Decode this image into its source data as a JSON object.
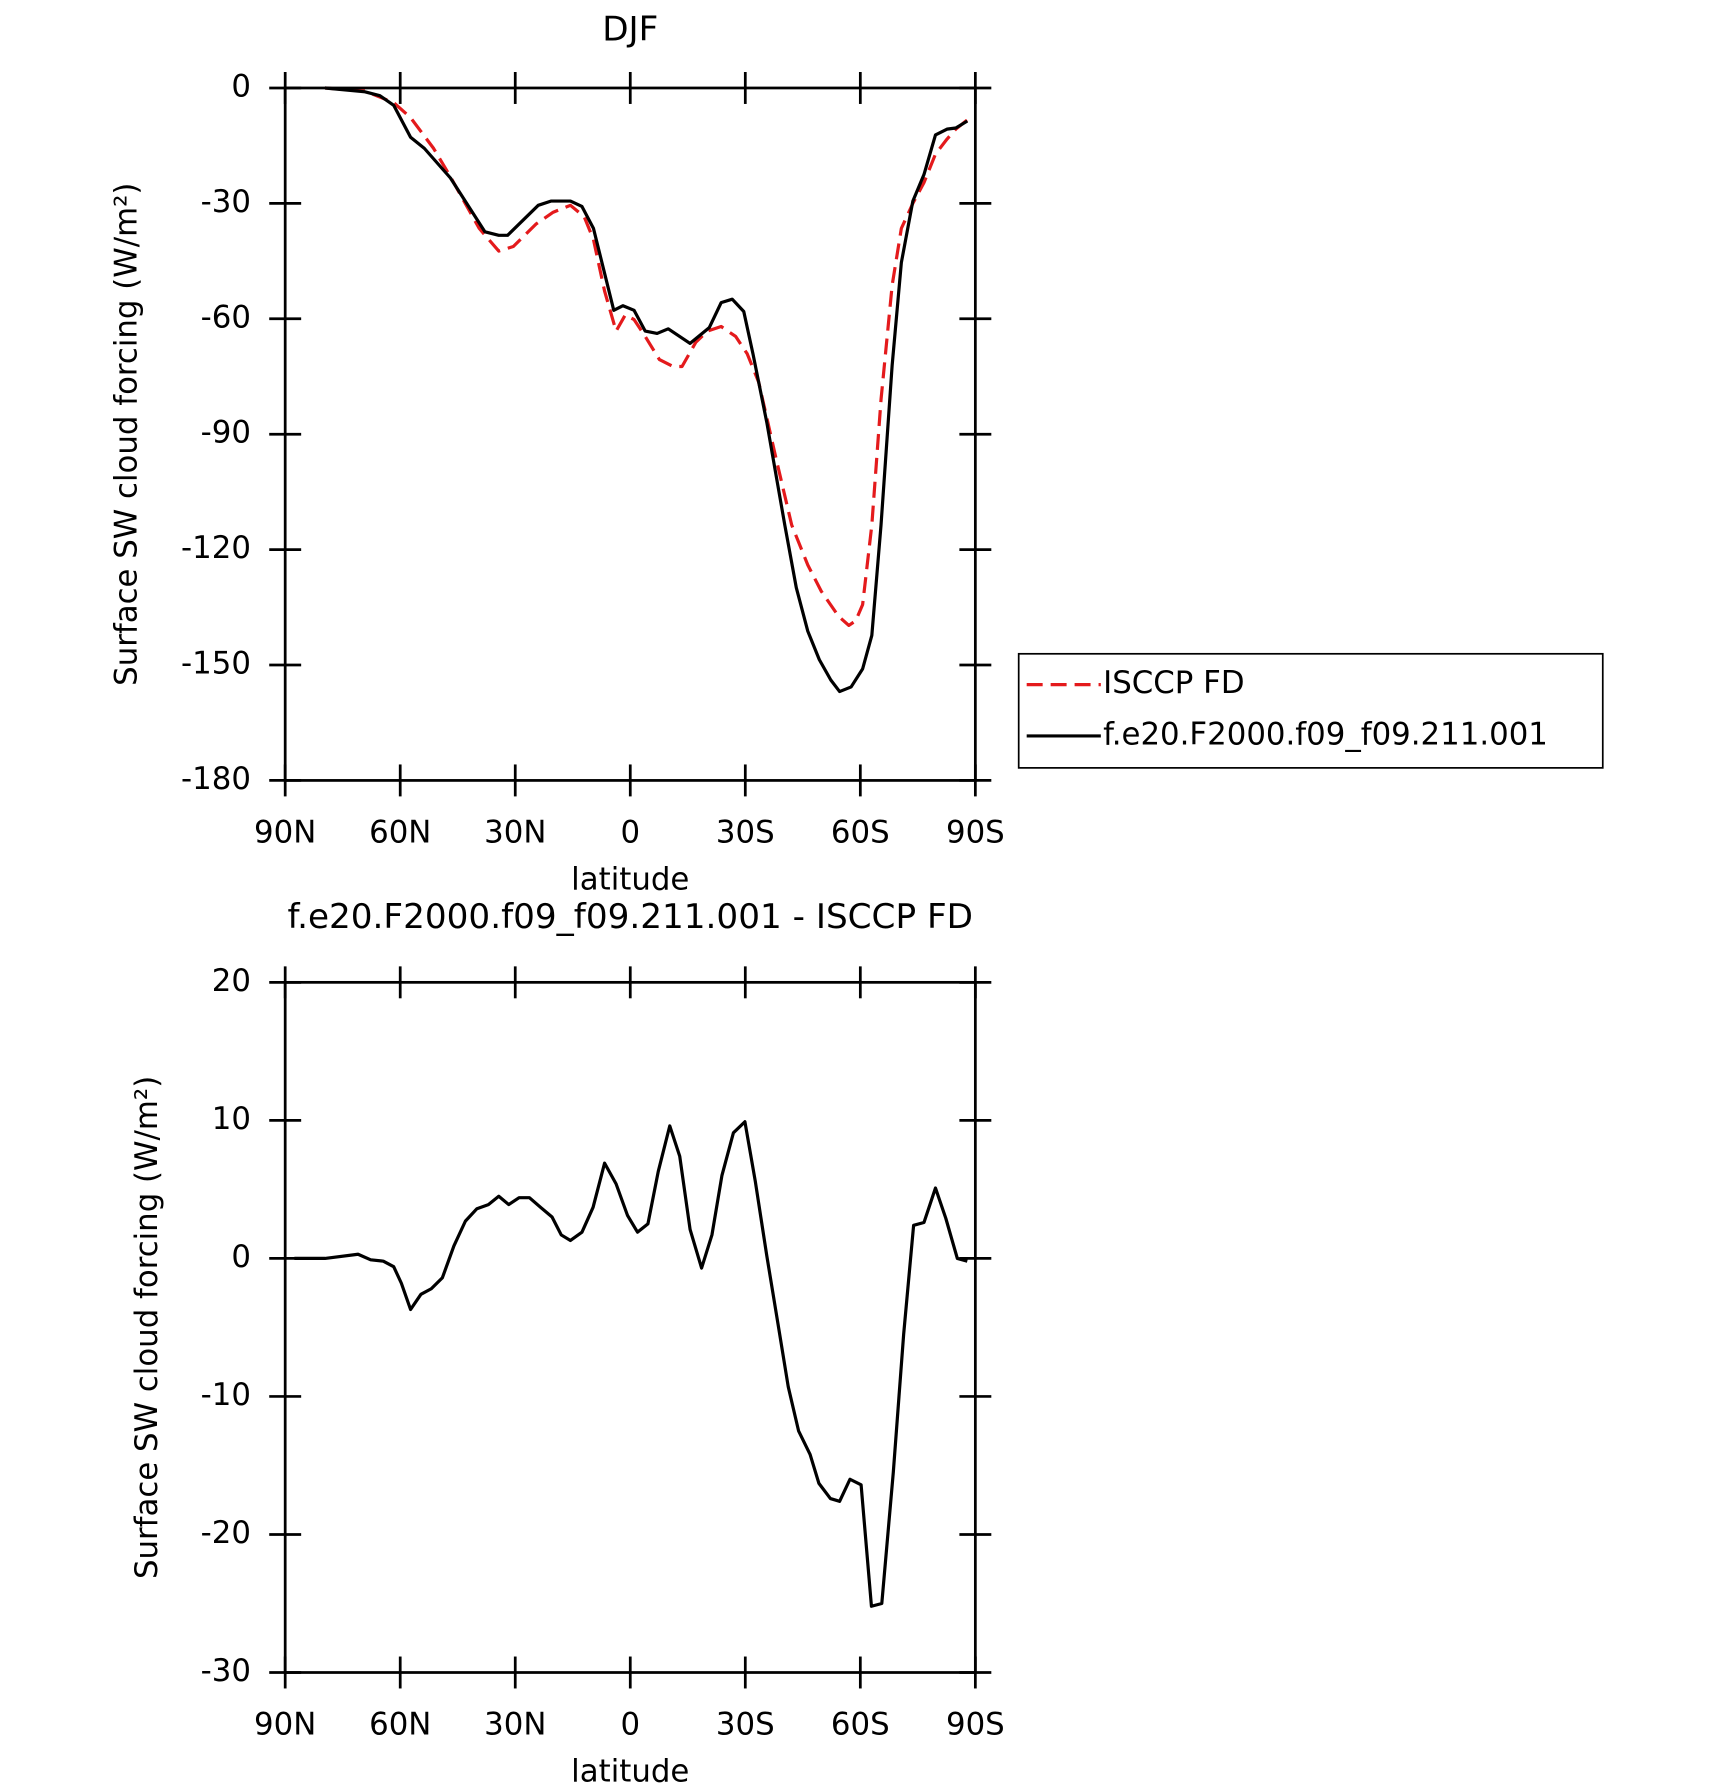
{
  "chart_data": [
    {
      "type": "line",
      "title": "DJF",
      "xlabel": "latitude",
      "ylabel": "Surface SW cloud forcing (W/m²)",
      "xlim": [
        90,
        -90
      ],
      "xticks": [
        {
          "value": 90,
          "label": "90N"
        },
        {
          "value": 60,
          "label": "60N"
        },
        {
          "value": 30,
          "label": "30N"
        },
        0,
        {
          "value": -30,
          "label": "30S"
        },
        {
          "value": -60,
          "label": "60S"
        },
        {
          "value": -90,
          "label": "90S"
        }
      ],
      "ylim": [
        -180,
        0
      ],
      "yticks": [
        0,
        -30,
        -60,
        -90,
        -120,
        -150,
        -180
      ],
      "legend": "outside-right",
      "series": [
        {
          "name": "ISCCP FD",
          "color": "#e41a1c",
          "linestyle": "dashed",
          "x": [
            79.6,
            69.2,
            61.7,
            57.3,
            51.3,
            46.9,
            39.4,
            34.3,
            30.5,
            24.5,
            20.1,
            15.6,
            12.0,
            9.6,
            6.7,
            3.7,
            1.3,
            -1.0,
            -3.9,
            -7.6,
            -11.2,
            -13.5,
            -17.1,
            -20.1,
            -23.7,
            -27.5,
            -30.5,
            -33.5,
            -37.9,
            -42.1,
            -46.3,
            -49.8,
            -54.3,
            -57.0,
            -58.8,
            -60.6,
            -63.0,
            -65.4,
            -68.3,
            -70.7,
            -73.7,
            -76.6,
            -79.6,
            -82.6,
            -84.9,
            -87.9
          ],
          "values": [
            0,
            -0.8,
            -3.8,
            -7.7,
            -15.7,
            -23.1,
            -36.5,
            -42.4,
            -41.2,
            -35.3,
            -32.3,
            -30.5,
            -33.5,
            -39.4,
            -52.8,
            -63.2,
            -59,
            -60.2,
            -64.6,
            -70.6,
            -72.4,
            -72.4,
            -66.1,
            -63.2,
            -62,
            -64.6,
            -69.1,
            -76.5,
            -95.8,
            -113.6,
            -124,
            -130.8,
            -137.3,
            -139.7,
            -138.5,
            -134.3,
            -113.6,
            -81,
            -51.3,
            -36.5,
            -30,
            -24.6,
            -17.2,
            -13.3,
            -10.7,
            -8.3
          ]
        },
        {
          "name": "f.e20.F2000.f09_f09.211.001",
          "color": "#000000",
          "linestyle": "solid",
          "x": [
            79.6,
            69.2,
            65.3,
            61.7,
            57.3,
            53.7,
            46.9,
            37.9,
            34.3,
            32.0,
            24.0,
            20.7,
            15.6,
            12.6,
            9.6,
            4.3,
            1.9,
            -1.0,
            -3.9,
            -7.0,
            -9.9,
            -15.6,
            -20.6,
            -23.7,
            -26.6,
            -29.6,
            -32.0,
            -35.6,
            -40.3,
            -43.3,
            -46.3,
            -49.3,
            -52.3,
            -54.6,
            -57.6,
            -60.6,
            -63.0,
            -65.4,
            -68.3,
            -70.7,
            -73.7,
            -76.6,
            -79.6,
            -82.6,
            -84.9,
            -87.9
          ],
          "values": [
            0,
            -1,
            -2,
            -4.5,
            -12.8,
            -15.7,
            -23.4,
            -37.4,
            -38.3,
            -38.3,
            -30.5,
            -29.4,
            -29.4,
            -30.8,
            -36.5,
            -57.8,
            -56.6,
            -57.8,
            -63.2,
            -63.8,
            -62.6,
            -66.4,
            -62.3,
            -55.8,
            -54.9,
            -58.1,
            -69.1,
            -86.9,
            -113.6,
            -129.9,
            -141.2,
            -148.6,
            -153.9,
            -156.9,
            -155.7,
            -151,
            -142.3,
            -113.6,
            -72.1,
            -45.4,
            -29.4,
            -22.5,
            -12.2,
            -10.7,
            -10.4,
            -8.6
          ]
        }
      ]
    },
    {
      "type": "line",
      "title": "f.e20.F2000.f09_f09.211.001 - ISCCP FD",
      "xlabel": "latitude",
      "ylabel": "Surface SW cloud forcing (W/m²)",
      "xlim": [
        90,
        -90
      ],
      "xticks": [
        {
          "value": 90,
          "label": "90N"
        },
        {
          "value": 60,
          "label": "60N"
        },
        {
          "value": 30,
          "label": "30N"
        },
        0,
        {
          "value": -30,
          "label": "30S"
        },
        {
          "value": -60,
          "label": "60S"
        },
        {
          "value": -90,
          "label": "90S"
        }
      ],
      "ylim": [
        -30,
        20
      ],
      "yticks": [
        20,
        10,
        0,
        -10,
        -20,
        -30
      ],
      "series": [
        {
          "color": "#000000",
          "linestyle": "solid",
          "x": [
            87.6,
            79.6,
            71.0,
            67.7,
            64.4,
            61.7,
            59.7,
            57.3,
            54.6,
            51.9,
            49.0,
            46.0,
            43.0,
            40.0,
            37.0,
            34.3,
            31.7,
            29.0,
            26.3,
            23.4,
            20.4,
            18.0,
            15.6,
            12.6,
            9.7,
            6.7,
            3.7,
            0.7,
            -1.9,
            -4.6,
            -7.3,
            -10.3,
            -12.9,
            -15.6,
            -18.6,
            -21.3,
            -23.9,
            -26.9,
            -29.9,
            -32.6,
            -35.6,
            -38.5,
            -41.2,
            -43.9,
            -46.9,
            -49.2,
            -52.2,
            -54.6,
            -57.3,
            -60.2,
            -62.9,
            -65.6,
            -68.6,
            -71.3,
            -73.9,
            -76.6,
            -79.6,
            -82.3,
            -85.3,
            -87.9
          ],
          "values": [
            0,
            0,
            0.3,
            -0.1,
            -0.2,
            -0.6,
            -1.8,
            -3.7,
            -2.6,
            -2.2,
            -1.4,
            0.9,
            2.7,
            3.6,
            3.9,
            4.5,
            3.9,
            4.4,
            4.4,
            3.7,
            3,
            1.7,
            1.3,
            1.9,
            3.7,
            6.9,
            5.4,
            3.1,
            1.9,
            2.5,
            6.3,
            9.6,
            7.4,
            2.1,
            -0.7,
            1.7,
            6,
            9.1,
            9.9,
            5.6,
            0.2,
            -4.7,
            -9.3,
            -12.5,
            -14.2,
            -16.3,
            -17.4,
            -17.6,
            -16,
            -16.4,
            -25.2,
            -25,
            -15.5,
            -5.5,
            2.4,
            2.6,
            5.1,
            2.9,
            0,
            -0.2
          ]
        }
      ]
    }
  ]
}
